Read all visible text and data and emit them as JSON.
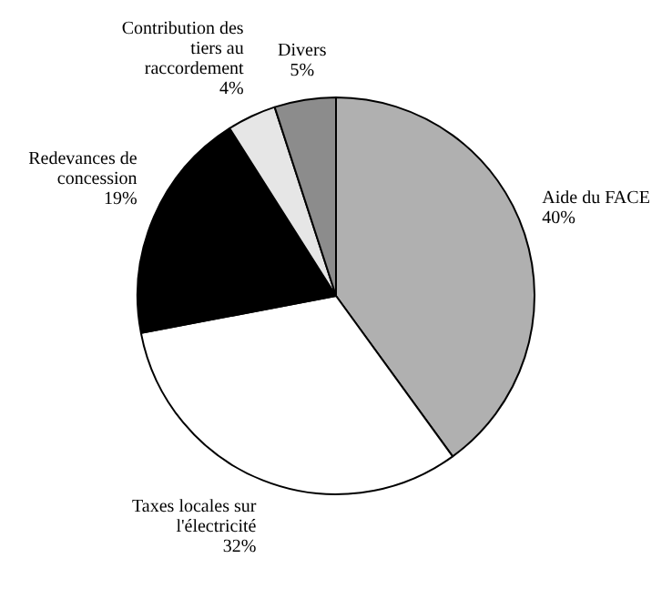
{
  "chart_data": {
    "type": "pie",
    "categories": [
      "Aide du FACE",
      "Taxes locales sur l'électricité",
      "Redevances de concession",
      "Contribution des tiers au raccordement",
      "Divers"
    ],
    "values": [
      40,
      32,
      19,
      4,
      5
    ],
    "value_labels": [
      "40%",
      "32%",
      "19%",
      "4%",
      "5%"
    ],
    "colors": [
      "#b0b0b0",
      "#ffffff",
      "#000000",
      "#e6e6e6",
      "#8c8c8c"
    ],
    "legend": false
  }
}
